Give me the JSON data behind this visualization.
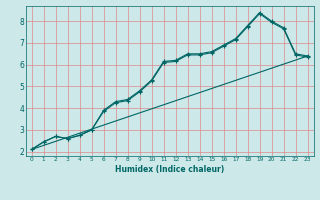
{
  "title": "",
  "xlabel": "Humidex (Indice chaleur)",
  "bg_color": "#cce8e8",
  "grid_color": "#dd8888",
  "line_color": "#006666",
  "xlim": [
    -0.5,
    23.5
  ],
  "ylim": [
    1.8,
    8.7
  ],
  "xticks": [
    0,
    1,
    2,
    3,
    4,
    5,
    6,
    7,
    8,
    9,
    10,
    11,
    12,
    13,
    14,
    15,
    16,
    17,
    18,
    19,
    20,
    21,
    22,
    23
  ],
  "yticks": [
    2,
    3,
    4,
    5,
    6,
    7,
    8
  ],
  "line1_x": [
    0,
    1,
    2,
    3,
    4,
    5,
    6,
    7,
    8,
    9,
    10,
    11,
    12,
    13,
    14,
    15,
    16,
    17,
    18,
    19,
    20,
    21,
    22,
    23
  ],
  "line1_y": [
    2.1,
    2.45,
    2.7,
    2.6,
    2.75,
    3.0,
    3.9,
    4.3,
    4.4,
    4.8,
    5.3,
    6.15,
    6.2,
    6.5,
    6.5,
    6.6,
    6.9,
    7.2,
    7.8,
    8.4,
    8.0,
    7.7,
    6.5,
    6.4
  ],
  "line2_x": [
    0,
    1,
    2,
    3,
    4,
    5,
    6,
    7,
    8,
    9,
    10,
    11,
    12,
    13,
    14,
    15,
    16,
    17,
    18,
    19,
    20,
    21,
    22,
    23
  ],
  "line2_y": [
    2.1,
    2.45,
    2.7,
    2.6,
    2.75,
    3.0,
    3.85,
    4.25,
    4.35,
    4.75,
    5.25,
    6.1,
    6.15,
    6.45,
    6.45,
    6.55,
    6.85,
    7.15,
    7.75,
    8.35,
    7.95,
    7.65,
    6.45,
    6.35
  ],
  "line3_x": [
    0,
    23
  ],
  "line3_y": [
    2.1,
    6.4
  ]
}
